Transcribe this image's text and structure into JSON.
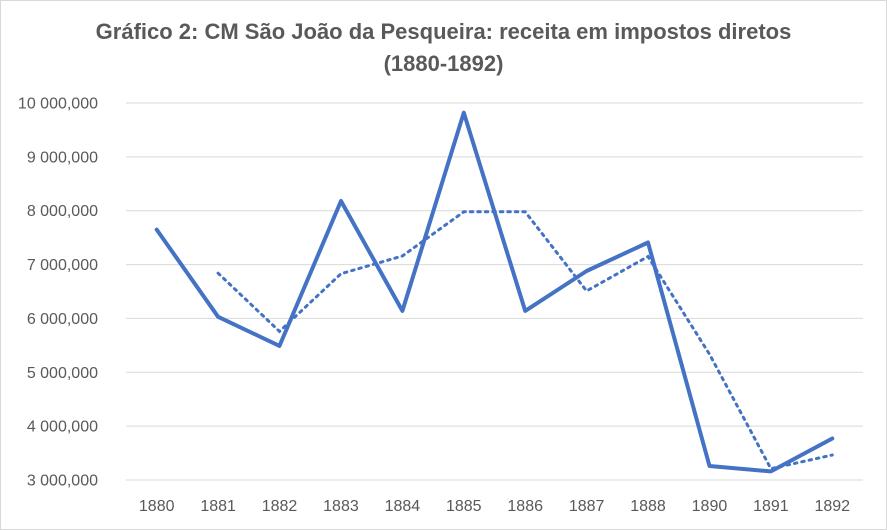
{
  "chart_data": {
    "type": "line",
    "title_line1": "Gráfico 2: CM São João da Pesqueira: receita em impostos diretos",
    "title_line2": "(1880-1892)",
    "categories": [
      "1880",
      "1881",
      "1882",
      "1883",
      "1884",
      "1885",
      "1886",
      "1887",
      "1888",
      "1890",
      "1891",
      "1892"
    ],
    "series": [
      {
        "values": [
          7650000,
          6030000,
          5490000,
          8180000,
          6140000,
          9820000,
          6140000,
          6880000,
          7410000,
          3260000,
          3160000,
          3770000
        ],
        "style": "solid",
        "color": "#4472c4"
      },
      {
        "values": [
          null,
          6840000,
          5760000,
          6830000,
          7160000,
          7980000,
          7980000,
          6510000,
          7150000,
          5335000,
          3210000,
          3465000
        ],
        "style": "dotted",
        "color": "#4472c4"
      }
    ],
    "y_ticks": [
      "3 000,000",
      "4 000,000",
      "5 000,000",
      "6 000,000",
      "7 000,000",
      "8 000,000",
      "9 000,000",
      "10 000,000"
    ],
    "ylim": [
      3000000,
      10000000
    ],
    "gridlines": true,
    "gridline_color": "#d9d9d9",
    "xlabel": "",
    "ylabel": ""
  }
}
